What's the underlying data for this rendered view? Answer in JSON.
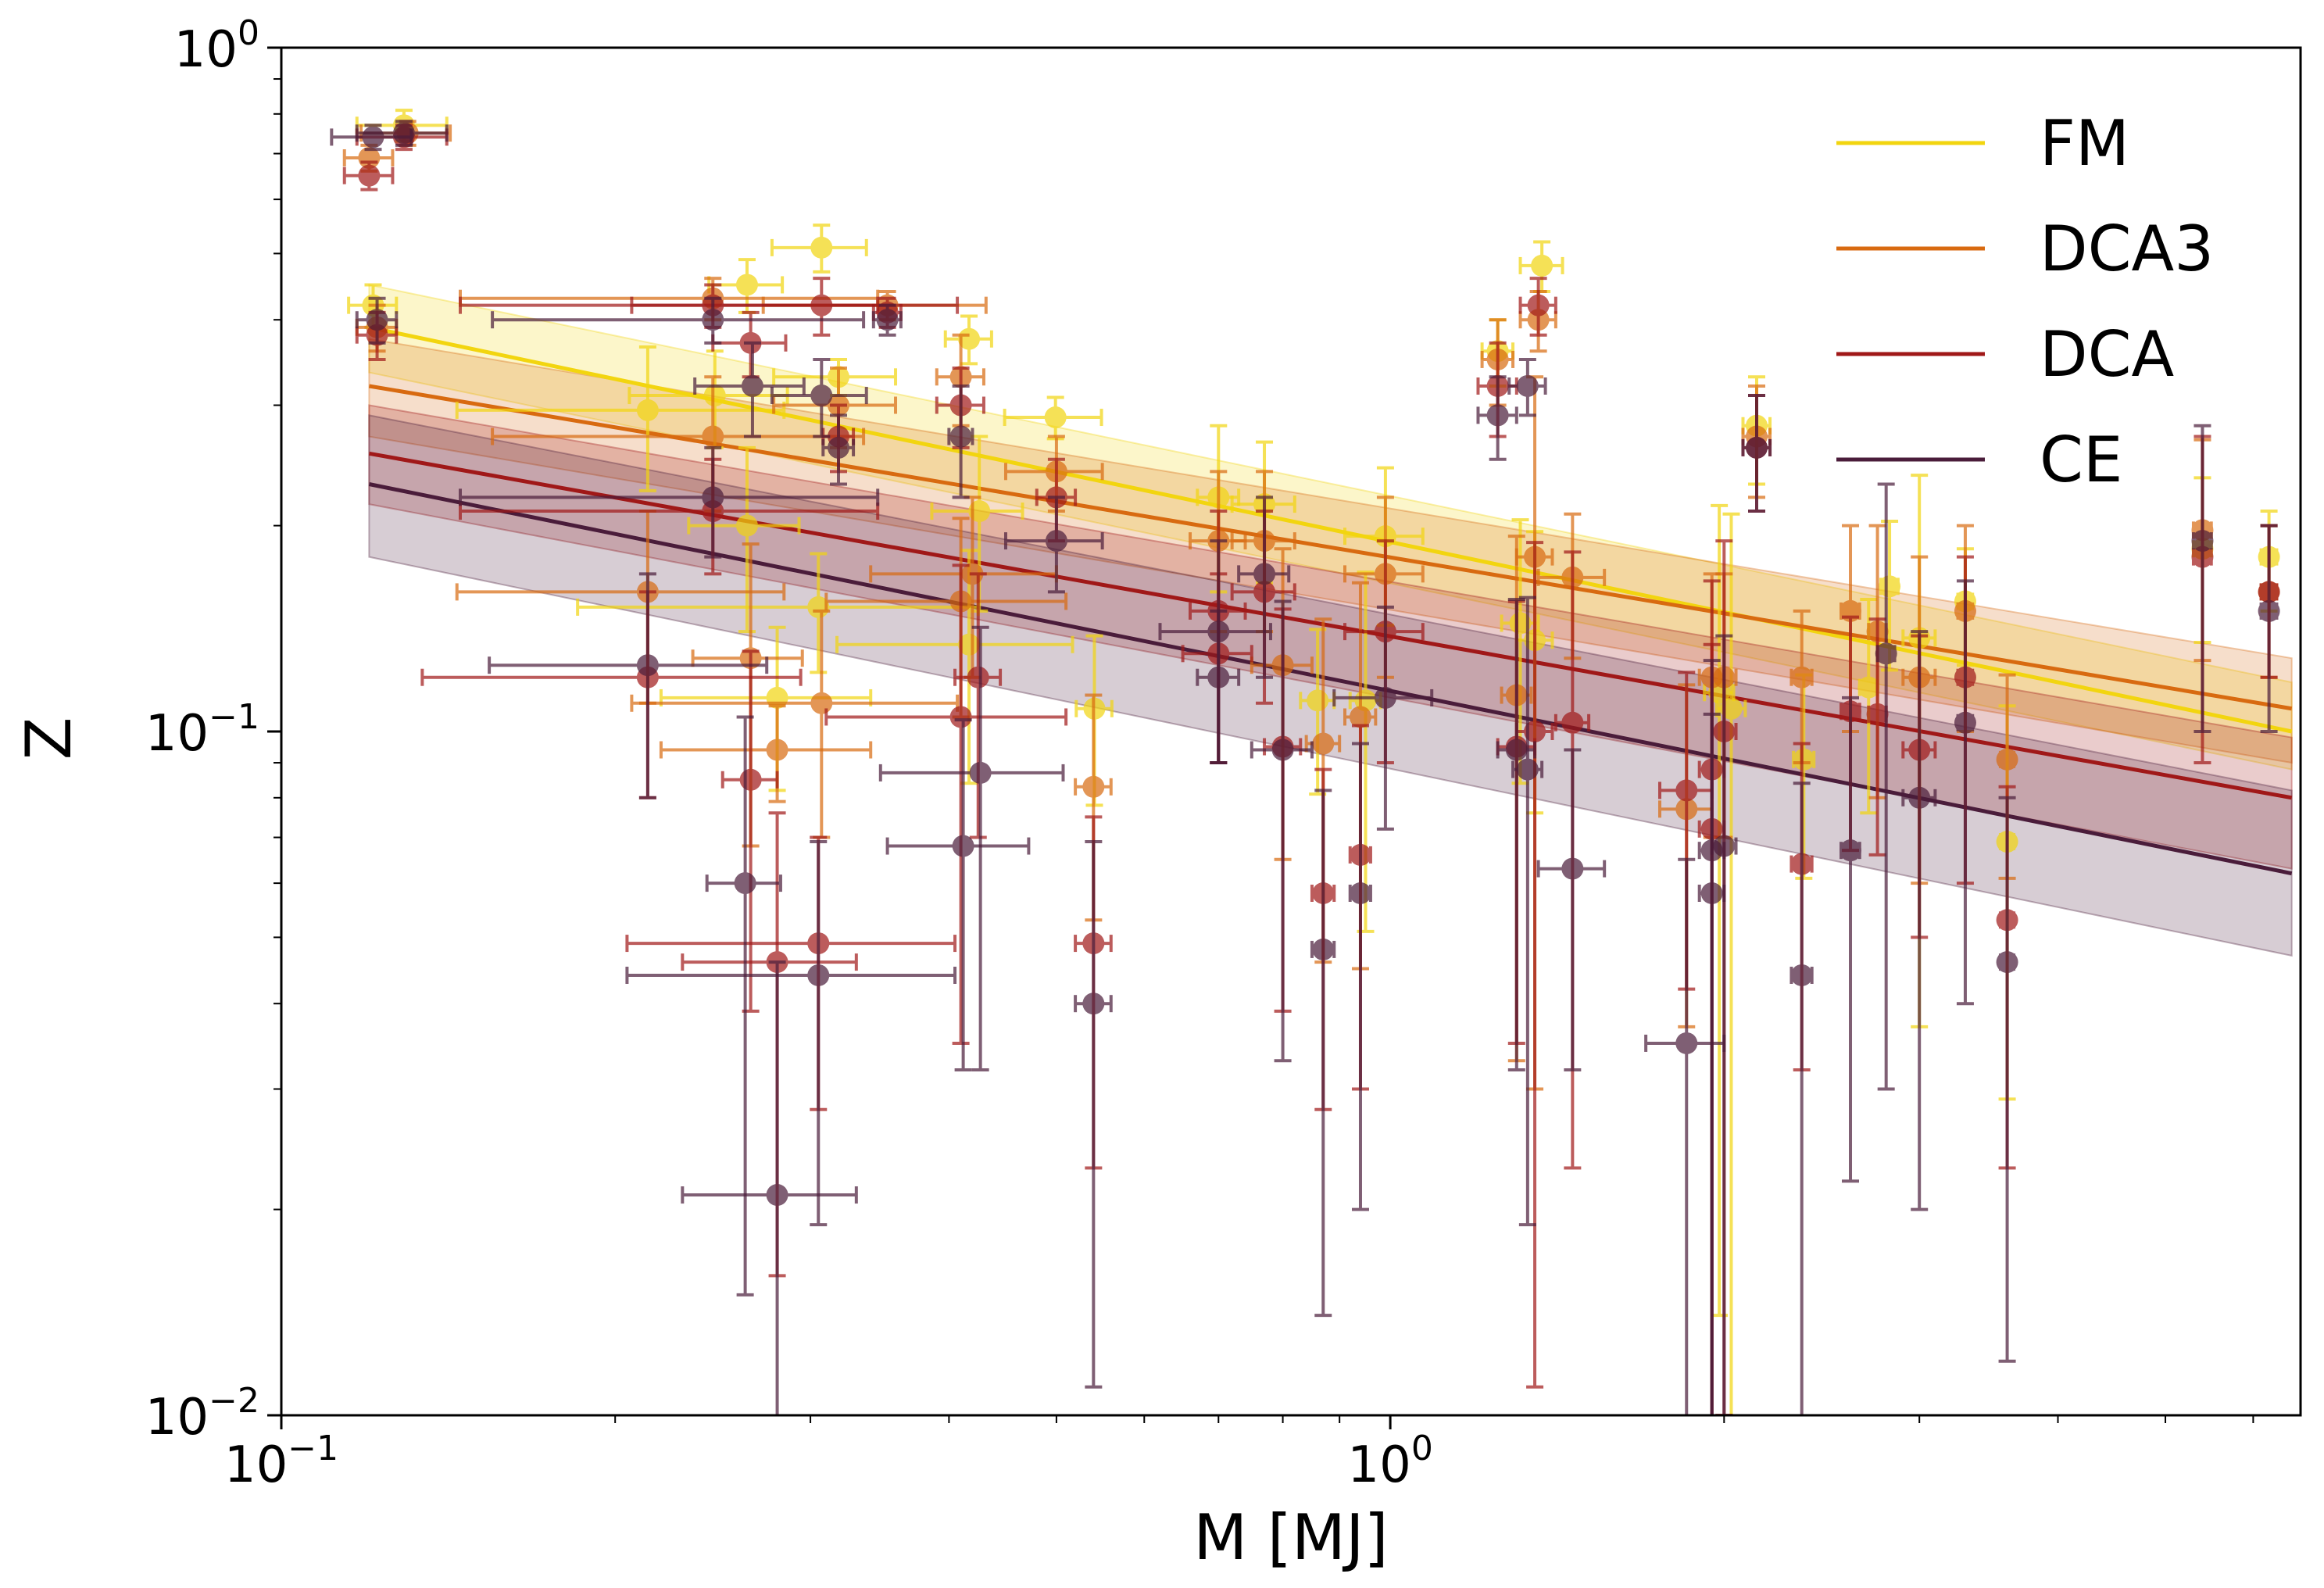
{
  "chart_data": {
    "type": "scatter",
    "title": "",
    "xlabel": "M [MJ]",
    "ylabel": "Z",
    "xscale": "log",
    "yscale": "log",
    "xlim": [
      0.1,
      6.62
    ],
    "ylim": [
      0.01,
      1.0
    ],
    "x_ticks": [
      {
        "value": 0.1,
        "base": "10",
        "exp": "−1"
      },
      {
        "value": 1,
        "base": "10",
        "exp": "0"
      }
    ],
    "y_ticks": [
      {
        "value": 0.01,
        "base": "10",
        "exp": "−2"
      },
      {
        "value": 0.1,
        "base": "10",
        "exp": "−1"
      },
      {
        "value": 1,
        "base": "10",
        "exp": "0"
      }
    ],
    "grid": false,
    "legend_position": "top-right",
    "point_format": [
      "M",
      "Z",
      "M_err",
      "Z_err"
    ],
    "series": [
      {
        "name": "FM",
        "color": "#f2d50f",
        "fit": {
          "x": [
            0.12,
            6.5
          ],
          "y": [
            0.39,
            0.1
          ],
          "band_low": [
            0.335,
            0.088
          ],
          "band_high": [
            0.45,
            0.118
          ]
        },
        "points": [
          [
            0.121,
            0.42,
            0.006,
            0.03
          ],
          [
            0.129,
            0.77,
            0.012,
            0.04
          ],
          [
            0.263,
            0.45,
            0.02,
            0.04
          ],
          [
            0.307,
            0.51,
            0.03,
            0.04
          ],
          [
            0.214,
            0.295,
            0.07,
            0.07
          ],
          [
            0.246,
            0.31,
            0.04,
            0.05
          ],
          [
            0.263,
            0.2,
            0.03,
            0.06
          ],
          [
            0.305,
            0.152,
            0.12,
            0.03
          ],
          [
            0.28,
            0.112,
            0.06,
            0.03
          ],
          [
            0.318,
            0.33,
            0.04,
            0.02
          ],
          [
            0.417,
            0.375,
            0.02,
            0.03
          ],
          [
            0.426,
            0.21,
            0.04,
            0.06
          ],
          [
            0.417,
            0.134,
            0.1,
            0.05
          ],
          [
            0.499,
            0.288,
            0.05,
            0.02
          ],
          [
            0.541,
            0.108,
            0.02,
            0.03
          ],
          [
            0.7,
            0.22,
            0.03,
            0.06
          ],
          [
            0.77,
            0.215,
            0.05,
            0.05
          ],
          [
            0.99,
            0.193,
            0.08,
            0.05
          ],
          [
            0.86,
            0.111,
            0.03,
            0.03
          ],
          [
            0.95,
            0.111,
            0.03,
            0.06
          ],
          [
            1.37,
            0.48,
            0.06,
            0.04
          ],
          [
            1.25,
            0.36,
            0.04,
            0.04
          ],
          [
            1.31,
            0.144,
            0.05,
            0.06
          ],
          [
            1.35,
            0.136,
            0.05,
            0.06
          ],
          [
            2.14,
            0.28,
            0.06,
            0.05
          ],
          [
            1.98,
            0.114,
            0.06,
            0.1
          ],
          [
            2.03,
            0.108,
            0.06,
            0.1
          ],
          [
            2.36,
            0.091,
            0.05,
            0.03
          ],
          [
            2.7,
            0.116,
            0.05,
            0.04
          ],
          [
            2.82,
            0.163,
            0.05,
            0.04
          ],
          [
            3.0,
            0.137,
            0.1,
            0.1
          ],
          [
            3.3,
            0.155,
            0.05,
            0.03
          ],
          [
            3.6,
            0.069,
            0.05,
            0.04
          ],
          [
            5.4,
            0.185,
            0.1,
            0.05
          ],
          [
            6.2,
            0.18,
            0.1,
            0.03
          ]
        ]
      },
      {
        "name": "DCA3",
        "color": "#d86a10",
        "fit": {
          "x": [
            0.12,
            6.5
          ],
          "y": [
            0.32,
            0.108
          ],
          "band_low": [
            0.27,
            0.09
          ],
          "band_high": [
            0.375,
            0.128
          ]
        },
        "points": [
          [
            0.12,
            0.69,
            0.006,
            0.03
          ],
          [
            0.13,
            0.75,
            0.012,
            0.03
          ],
          [
            0.122,
            0.39,
            0.005,
            0.03
          ],
          [
            0.245,
            0.43,
            0.1,
            0.03
          ],
          [
            0.245,
            0.27,
            0.09,
            0.06
          ],
          [
            0.265,
            0.128,
            0.03,
            0.06
          ],
          [
            0.28,
            0.094,
            0.06,
            0.015
          ],
          [
            0.307,
            0.11,
            0.1,
            0.04
          ],
          [
            0.214,
            0.16,
            0.07,
            0.05
          ],
          [
            0.318,
            0.3,
            0.04,
            0.04
          ],
          [
            0.352,
            0.42,
            0.08,
            0.02
          ],
          [
            0.41,
            0.33,
            0.02,
            0.05
          ],
          [
            0.41,
            0.155,
            0.1,
            0.05
          ],
          [
            0.42,
            0.17,
            0.08,
            0.05
          ],
          [
            0.5,
            0.24,
            0.05,
            0.03
          ],
          [
            0.54,
            0.083,
            0.02,
            0.03
          ],
          [
            0.7,
            0.19,
            0.04,
            0.05
          ],
          [
            0.77,
            0.19,
            0.05,
            0.05
          ],
          [
            0.8,
            0.125,
            0.05,
            0.06
          ],
          [
            0.87,
            0.096,
            0.03,
            0.05
          ],
          [
            0.94,
            0.105,
            0.03,
            0.06
          ],
          [
            0.99,
            0.17,
            0.08,
            0.05
          ],
          [
            1.25,
            0.35,
            0.04,
            0.05
          ],
          [
            1.36,
            0.4,
            0.05,
            0.04
          ],
          [
            1.3,
            0.113,
            0.04,
            0.08
          ],
          [
            1.35,
            0.18,
            0.05,
            0.15
          ],
          [
            1.46,
            0.168,
            0.1,
            0.04
          ],
          [
            1.85,
            0.077,
            0.1,
            0.04
          ],
          [
            1.95,
            0.12,
            0.05,
            0.05
          ],
          [
            2.0,
            0.12,
            0.05,
            0.05
          ],
          [
            2.14,
            0.27,
            0.06,
            0.05
          ],
          [
            2.35,
            0.12,
            0.05,
            0.03
          ],
          [
            2.6,
            0.15,
            0.05,
            0.05
          ],
          [
            2.75,
            0.14,
            0.05,
            0.06
          ],
          [
            3.0,
            0.12,
            0.1,
            0.06
          ],
          [
            3.3,
            0.15,
            0.05,
            0.05
          ],
          [
            3.6,
            0.091,
            0.05,
            0.03
          ],
          [
            5.4,
            0.197,
            0.1,
            0.07
          ],
          [
            6.2,
            0.16,
            0.1,
            0.04
          ]
        ]
      },
      {
        "name": "DCA",
        "color": "#a01818",
        "fit": {
          "x": [
            0.12,
            6.5
          ],
          "y": [
            0.255,
            0.08
          ],
          "band_low": [
            0.215,
            0.063
          ],
          "band_high": [
            0.3,
            0.098
          ]
        },
        "points": [
          [
            0.12,
            0.65,
            0.006,
            0.03
          ],
          [
            0.129,
            0.74,
            0.012,
            0.03
          ],
          [
            0.122,
            0.38,
            0.005,
            0.03
          ],
          [
            0.245,
            0.42,
            0.1,
            0.03
          ],
          [
            0.265,
            0.37,
            0.02,
            0.04
          ],
          [
            0.307,
            0.42,
            0.1,
            0.04
          ],
          [
            0.245,
            0.21,
            0.1,
            0.04
          ],
          [
            0.214,
            0.12,
            0.08,
            0.04
          ],
          [
            0.265,
            0.085,
            0.015,
            0.046
          ],
          [
            0.28,
            0.046,
            0.05,
            0.03
          ],
          [
            0.305,
            0.049,
            0.1,
            0.021
          ],
          [
            0.318,
            0.27,
            0.01,
            0.03
          ],
          [
            0.352,
            0.41,
            0.01,
            0.02
          ],
          [
            0.41,
            0.3,
            0.02,
            0.04
          ],
          [
            0.41,
            0.105,
            0.1,
            0.07
          ],
          [
            0.425,
            0.12,
            0.02,
            0.05
          ],
          [
            0.5,
            0.22,
            0.02,
            0.03
          ],
          [
            0.54,
            0.049,
            0.02,
            0.026
          ],
          [
            0.7,
            0.15,
            0.04,
            0.06
          ],
          [
            0.7,
            0.13,
            0.05,
            0.04
          ],
          [
            0.77,
            0.16,
            0.05,
            0.05
          ],
          [
            0.8,
            0.095,
            0.03,
            0.056
          ],
          [
            0.87,
            0.058,
            0.02,
            0.03
          ],
          [
            0.94,
            0.066,
            0.02,
            0.036
          ],
          [
            0.99,
            0.14,
            0.08,
            0.05
          ],
          [
            1.25,
            0.32,
            0.05,
            0.05
          ],
          [
            1.36,
            0.42,
            0.05,
            0.04
          ],
          [
            1.3,
            0.095,
            0.05,
            0.06
          ],
          [
            1.35,
            0.1,
            0.05,
            0.089
          ],
          [
            1.46,
            0.103,
            0.05,
            0.08
          ],
          [
            1.85,
            0.082,
            0.1,
            0.04
          ],
          [
            1.95,
            0.088,
            0.05,
            0.078
          ],
          [
            1.95,
            0.072,
            0.05,
            0.062
          ],
          [
            2.0,
            0.1,
            0.05,
            0.09
          ],
          [
            2.14,
            0.26,
            0.06,
            0.05
          ],
          [
            2.35,
            0.064,
            0.05,
            0.032
          ],
          [
            2.6,
            0.107,
            0.05,
            0.04
          ],
          [
            2.75,
            0.106,
            0.05,
            0.04
          ],
          [
            3.0,
            0.094,
            0.1,
            0.044
          ],
          [
            3.3,
            0.12,
            0.05,
            0.06
          ],
          [
            3.6,
            0.053,
            0.05,
            0.03
          ],
          [
            5.4,
            0.18,
            0.1,
            0.09
          ],
          [
            6.2,
            0.16,
            0.1,
            0.04
          ]
        ]
      },
      {
        "name": "CE",
        "color": "#4a1c3a",
        "fit": {
          "x": [
            0.12,
            6.5
          ],
          "y": [
            0.23,
            0.062
          ],
          "band_low": [
            0.18,
            0.047
          ],
          "band_high": [
            0.29,
            0.082
          ]
        },
        "points": [
          [
            0.121,
            0.74,
            0.01,
            0.03
          ],
          [
            0.129,
            0.75,
            0.012,
            0.03
          ],
          [
            0.122,
            0.4,
            0.005,
            0.03
          ],
          [
            0.245,
            0.4,
            0.09,
            0.03
          ],
          [
            0.266,
            0.32,
            0.03,
            0.05
          ],
          [
            0.307,
            0.31,
            0.03,
            0.04
          ],
          [
            0.245,
            0.22,
            0.1,
            0.04
          ],
          [
            0.214,
            0.125,
            0.06,
            0.045
          ],
          [
            0.262,
            0.06,
            0.02,
            0.045
          ],
          [
            0.28,
            0.021,
            0.05,
            0.025
          ],
          [
            0.305,
            0.044,
            0.1,
            0.025
          ],
          [
            0.318,
            0.26,
            0.01,
            0.03
          ],
          [
            0.352,
            0.4,
            0.01,
            0.02
          ],
          [
            0.41,
            0.27,
            0.01,
            0.05
          ],
          [
            0.412,
            0.068,
            0.06,
            0.036
          ],
          [
            0.427,
            0.087,
            0.08,
            0.055
          ],
          [
            0.5,
            0.19,
            0.05,
            0.03
          ],
          [
            0.54,
            0.04,
            0.02,
            0.029
          ],
          [
            0.7,
            0.14,
            0.08,
            0.05
          ],
          [
            0.7,
            0.12,
            0.03,
            0.03
          ],
          [
            0.77,
            0.17,
            0.04,
            0.05
          ],
          [
            0.8,
            0.094,
            0.05,
            0.061
          ],
          [
            0.87,
            0.048,
            0.02,
            0.034
          ],
          [
            0.94,
            0.058,
            0.02,
            0.038
          ],
          [
            0.99,
            0.112,
            0.1,
            0.04
          ],
          [
            1.25,
            0.29,
            0.05,
            0.04
          ],
          [
            1.33,
            0.32,
            0.05,
            0.03
          ],
          [
            1.3,
            0.094,
            0.05,
            0.062
          ],
          [
            1.33,
            0.088,
            0.04,
            0.069
          ],
          [
            1.46,
            0.063,
            0.1,
            0.031
          ],
          [
            1.85,
            0.035,
            0.15,
            0.03
          ],
          [
            1.95,
            0.058,
            0.05,
            0.048
          ],
          [
            1.95,
            0.067,
            0.05,
            0.06
          ],
          [
            2.0,
            0.068,
            0.05,
            0.07
          ],
          [
            2.14,
            0.26,
            0.06,
            0.05
          ],
          [
            2.35,
            0.044,
            0.05,
            0.04
          ],
          [
            2.6,
            0.067,
            0.05,
            0.045
          ],
          [
            2.8,
            0.13,
            0.05,
            0.1
          ],
          [
            3.0,
            0.08,
            0.1,
            0.06
          ],
          [
            3.3,
            0.103,
            0.05,
            0.063
          ],
          [
            3.6,
            0.046,
            0.05,
            0.034
          ],
          [
            5.4,
            0.19,
            0.1,
            0.09
          ],
          [
            6.2,
            0.15,
            0.1,
            0.05
          ]
        ]
      }
    ]
  }
}
